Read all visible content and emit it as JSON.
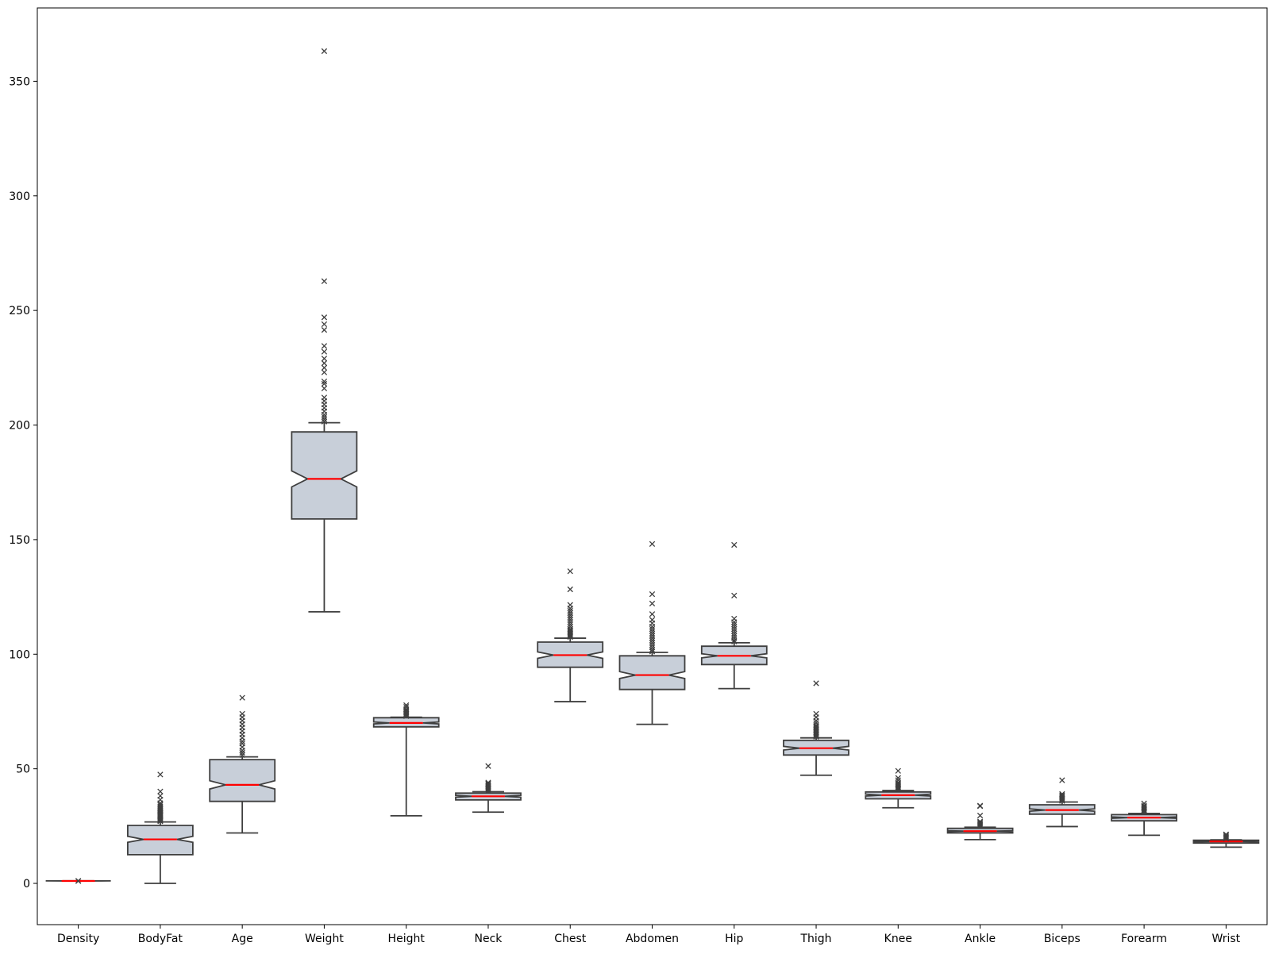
{
  "chart_data": {
    "type": "boxplot",
    "title": "",
    "xlabel": "",
    "ylabel": "",
    "ylim": [
      -18,
      382
    ],
    "yticks": [
      0,
      50,
      100,
      150,
      200,
      250,
      300,
      350
    ],
    "notched": true,
    "grid": false,
    "legend": "none",
    "colors": {
      "box_fill": "#c8cfd9",
      "box_edge": "#3f3f3f",
      "median": "#ff0000",
      "flier": "#3f3f3f"
    },
    "categories": [
      "Density",
      "BodyFat",
      "Age",
      "Weight",
      "Height",
      "Neck",
      "Chest",
      "Abdomen",
      "Hip",
      "Thigh",
      "Knee",
      "Ankle",
      "Biceps",
      "Forearm",
      "Wrist"
    ],
    "boxes": [
      {
        "name": "Density",
        "whisker_low": 1.0,
        "q1": 1.04,
        "median": 1.06,
        "notch_low": 1.05,
        "notch_high": 1.07,
        "q3": 1.07,
        "whisker_high": 1.11,
        "outliers": [
          1.0,
          1.11
        ]
      },
      {
        "name": "BodyFat",
        "whisker_low": 0,
        "q1": 12.5,
        "median": 19.2,
        "notch_low": 17.9,
        "notch_high": 20.5,
        "q3": 25.3,
        "whisker_high": 26.8,
        "outliers": [
          27.1,
          27.4,
          27.8,
          28.1,
          28.5,
          28.9,
          29.3,
          29.6,
          30.0,
          30.4,
          30.8,
          31.2,
          31.6,
          32.0,
          32.5,
          33.0,
          33.6,
          34.3,
          35.0,
          36.5,
          38.2,
          40.1,
          47.5
        ]
      },
      {
        "name": "Age",
        "whisker_low": 22,
        "q1": 35.8,
        "median": 43.0,
        "notch_low": 41.2,
        "notch_high": 44.8,
        "q3": 54.0,
        "whisker_high": 55.2,
        "outliers": [
          56.0,
          57.0,
          58.0,
          59.5,
          61.0,
          62.0,
          63.5,
          65.0,
          66.5,
          68.0,
          69.5,
          71.0,
          72.5,
          74.0,
          81.0
        ]
      },
      {
        "name": "Weight",
        "whisker_low": 118.5,
        "q1": 159.0,
        "median": 176.5,
        "notch_low": 173.0,
        "notch_high": 180.0,
        "q3": 197.0,
        "whisker_high": 201.0,
        "outliers": [
          201.5,
          202.5,
          203.5,
          204.5,
          206.0,
          207.5,
          209.0,
          210.5,
          212.0,
          216.0,
          218.0,
          219.0,
          223.0,
          225.0,
          227.0,
          229.0,
          232.0,
          234.5,
          241.5,
          244.0,
          247.0,
          262.75,
          363.15
        ]
      },
      {
        "name": "Height",
        "whisker_low": 29.5,
        "q1": 68.3,
        "median": 70.0,
        "notch_low": 69.6,
        "notch_high": 70.4,
        "q3": 72.3,
        "whisker_high": 72.5,
        "outliers": [
          73.0,
          73.5,
          74.0,
          74.5,
          75.0,
          75.5,
          76.0,
          77.0,
          77.75
        ]
      },
      {
        "name": "Neck",
        "whisker_low": 31.1,
        "q1": 36.4,
        "median": 38.0,
        "notch_low": 37.6,
        "notch_high": 38.4,
        "q3": 39.4,
        "whisker_high": 40.0,
        "outliers": [
          40.5,
          41.0,
          41.5,
          42.0,
          42.5,
          43.0,
          43.5,
          44.0,
          51.2
        ]
      },
      {
        "name": "Chest",
        "whisker_low": 79.3,
        "q1": 94.3,
        "median": 99.6,
        "notch_low": 98.2,
        "notch_high": 101.0,
        "q3": 105.3,
        "whisker_high": 107.0,
        "outliers": [
          107.5,
          108.0,
          108.5,
          109.0,
          109.5,
          110.0,
          110.5,
          111.0,
          112.0,
          113.0,
          114.0,
          115.0,
          116.0,
          117.0,
          118.0,
          119.0,
          120.0,
          121.5,
          128.3,
          136.2
        ]
      },
      {
        "name": "Abdomen",
        "whisker_low": 69.4,
        "q1": 84.6,
        "median": 90.9,
        "notch_low": 89.4,
        "notch_high": 92.4,
        "q3": 99.3,
        "whisker_high": 100.8,
        "outliers": [
          101.2,
          102.0,
          103.0,
          104.0,
          105.0,
          106.0,
          107.0,
          108.0,
          109.0,
          110.0,
          111.0,
          112.0,
          113.5,
          115.0,
          117.5,
          122.1,
          126.2,
          148.1
        ]
      },
      {
        "name": "Hip",
        "whisker_low": 85.0,
        "q1": 95.5,
        "median": 99.3,
        "notch_low": 98.4,
        "notch_high": 100.2,
        "q3": 103.5,
        "whisker_high": 105.0,
        "outliers": [
          105.5,
          106.0,
          107.0,
          108.0,
          109.0,
          110.0,
          111.0,
          112.0,
          113.0,
          114.0,
          115.5,
          125.6,
          147.7
        ]
      },
      {
        "name": "Thigh",
        "whisker_low": 47.2,
        "q1": 56.0,
        "median": 59.0,
        "notch_low": 58.2,
        "notch_high": 59.8,
        "q3": 62.4,
        "whisker_high": 63.5,
        "outliers": [
          64.0,
          64.5,
          65.0,
          65.5,
          66.0,
          66.5,
          67.0,
          67.5,
          68.0,
          68.5,
          69.0,
          70.0,
          71.0,
          72.5,
          74.0,
          87.3
        ]
      },
      {
        "name": "Knee",
        "whisker_low": 33.0,
        "q1": 36.9,
        "median": 38.5,
        "notch_low": 38.1,
        "notch_high": 38.9,
        "q3": 39.9,
        "whisker_high": 40.5,
        "outliers": [
          41.0,
          41.5,
          42.0,
          42.5,
          43.0,
          43.5,
          44.0,
          45.0,
          46.0,
          49.1
        ]
      },
      {
        "name": "Ankle",
        "whisker_low": 19.1,
        "q1": 22.0,
        "median": 22.8,
        "notch_low": 22.6,
        "notch_high": 23.0,
        "q3": 24.0,
        "whisker_high": 24.5,
        "outliers": [
          25.0,
          25.5,
          26.0,
          26.5,
          27.0,
          29.6,
          33.7,
          33.9
        ]
      },
      {
        "name": "Biceps",
        "whisker_low": 24.8,
        "q1": 30.2,
        "median": 32.0,
        "notch_low": 31.5,
        "notch_high": 32.5,
        "q3": 34.3,
        "whisker_high": 35.5,
        "outliers": [
          36.0,
          36.5,
          37.0,
          37.5,
          38.0,
          38.5,
          39.0,
          45.0
        ]
      },
      {
        "name": "Forearm",
        "whisker_low": 21.0,
        "q1": 27.3,
        "median": 28.7,
        "notch_low": 28.4,
        "notch_high": 29.0,
        "q3": 30.0,
        "whisker_high": 30.5,
        "outliers": [
          31.0,
          31.5,
          32.0,
          32.5,
          33.0,
          33.5,
          34.0,
          34.9
        ]
      },
      {
        "name": "Wrist",
        "whisker_low": 15.8,
        "q1": 17.6,
        "median": 18.3,
        "notch_low": 18.2,
        "notch_high": 18.4,
        "q3": 18.8,
        "whisker_high": 19.0,
        "outliers": [
          19.5,
          20.0,
          20.5,
          21.0,
          21.4
        ]
      }
    ]
  }
}
